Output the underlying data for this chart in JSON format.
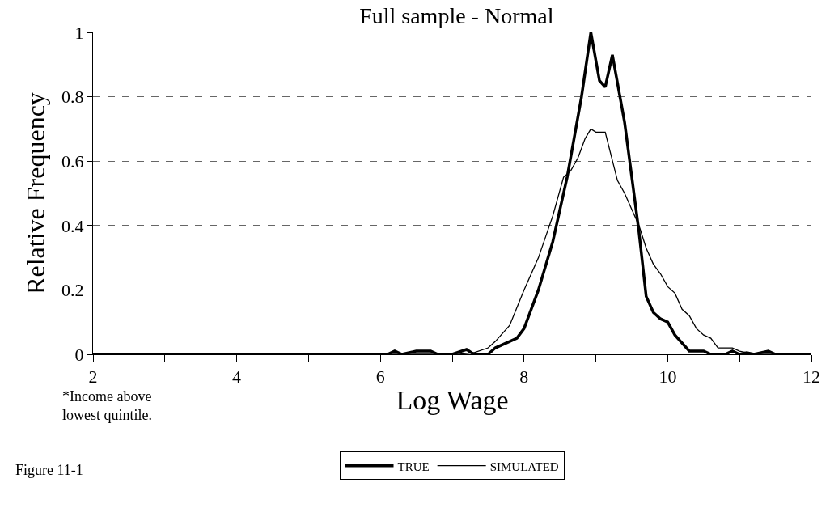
{
  "chart_data": {
    "type": "line",
    "title": "Full sample - Normal",
    "xlabel": "Log Wage",
    "ylabel": "Relative Frequency",
    "annotations": [
      "*Income above\nlowest quintile.",
      "Figure 11-1"
    ],
    "series": [
      {
        "name": "TRUE",
        "color": "#000000",
        "x": [
          2,
          6.1,
          6.2,
          6.3,
          6.5,
          6.7,
          6.8,
          7.0,
          7.2,
          7.3,
          7.5,
          7.6,
          7.8,
          7.9,
          8.0,
          8.2,
          8.4,
          8.6,
          8.8,
          8.93,
          9.05,
          9.13,
          9.23,
          9.4,
          9.5,
          9.6,
          9.7,
          9.8,
          9.9,
          10.0,
          10.1,
          10.3,
          10.5,
          10.6,
          10.8,
          10.9,
          11.0,
          11.1,
          11.2,
          11.4,
          11.5,
          12
        ],
        "values": [
          0,
          0,
          0.01,
          0,
          0.01,
          0.01,
          0,
          0,
          0.015,
          0,
          0,
          0.02,
          0.04,
          0.05,
          0.08,
          0.2,
          0.35,
          0.55,
          0.8,
          1.0,
          0.85,
          0.83,
          0.93,
          0.72,
          0.55,
          0.38,
          0.18,
          0.13,
          0.11,
          0.1,
          0.06,
          0.01,
          0.01,
          0,
          0,
          0.01,
          0,
          0.005,
          0,
          0.01,
          0,
          0
        ]
      },
      {
        "name": "SIMULATED",
        "color": "#000000",
        "x": [
          2,
          7.1,
          7.3,
          7.5,
          7.6,
          7.8,
          8.0,
          8.2,
          8.4,
          8.55,
          8.65,
          8.75,
          8.85,
          8.93,
          9.0,
          9.13,
          9.3,
          9.4,
          9.5,
          9.6,
          9.7,
          9.8,
          9.9,
          10.0,
          10.1,
          10.2,
          10.3,
          10.4,
          10.5,
          10.6,
          10.7,
          10.9,
          11.0,
          11.2,
          12
        ],
        "values": [
          0,
          0,
          0.005,
          0.02,
          0.04,
          0.09,
          0.2,
          0.3,
          0.43,
          0.55,
          0.57,
          0.61,
          0.67,
          0.7,
          0.69,
          0.69,
          0.54,
          0.5,
          0.45,
          0.4,
          0.33,
          0.28,
          0.25,
          0.21,
          0.19,
          0.14,
          0.12,
          0.08,
          0.06,
          0.05,
          0.02,
          0.02,
          0.01,
          0,
          0
        ]
      }
    ],
    "xlim": [
      2,
      12
    ],
    "xticks": [
      2,
      {
        "value": 3,
        "label": null
      },
      4,
      {
        "value": 5,
        "label": null
      },
      6,
      {
        "value": 7,
        "label": null
      },
      8,
      {
        "value": 9,
        "label": null
      },
      10,
      {
        "value": 11,
        "label": null
      },
      12
    ],
    "ylim": [
      0,
      1
    ],
    "yticks": [
      0,
      0.2,
      0.4,
      0.6,
      0.8,
      1
    ],
    "grid": "y",
    "legend": "bottom",
    "marker": "none",
    "line_style": "solid"
  }
}
